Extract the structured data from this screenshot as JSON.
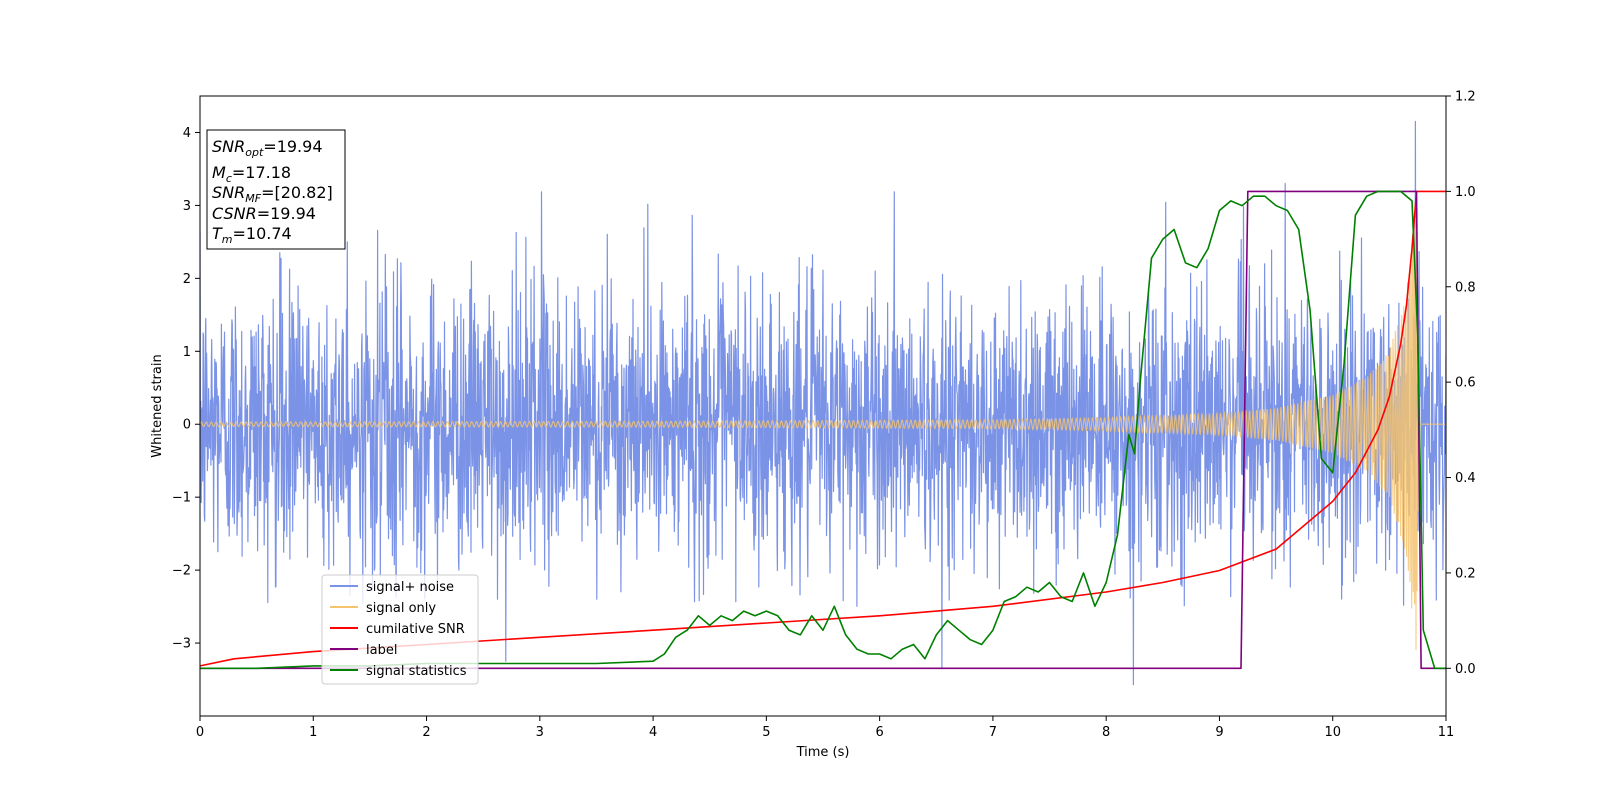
{
  "chart_data": {
    "type": "line",
    "xlabel": "Time (s)",
    "ylabel": "Whitened strain",
    "xlim": [
      0,
      11
    ],
    "ylim": [
      -4.0,
      4.5
    ],
    "y2lim": [
      -0.1,
      1.2
    ],
    "grid": false,
    "x_ticks": [
      "0",
      "1",
      "2",
      "3",
      "4",
      "5",
      "6",
      "7",
      "8",
      "9",
      "10",
      "11"
    ],
    "y_ticks": [
      "−3",
      "−2",
      "−1",
      "0",
      "1",
      "2",
      "3",
      "4"
    ],
    "y2_ticks": [
      "0.0",
      "0.2",
      "0.4",
      "0.6",
      "0.8",
      "1.0",
      "1.2"
    ],
    "legend_position": "lower-left",
    "info_box": {
      "snr_opt": {
        "base": "SNR",
        "sub": "opt",
        "value": "=19.94"
      },
      "mc": {
        "base": "M",
        "sub": "c",
        "value": "=17.18"
      },
      "snr_mf": {
        "base": "SNR",
        "sub": "MF",
        "value": "=[20.82]"
      },
      "csnr": {
        "base": "CSNR",
        "sub": "",
        "value": "=19.94"
      },
      "tm": {
        "base": "T",
        "sub": "m",
        "value": "=10.74"
      }
    },
    "series": [
      {
        "name": "signal+ noise",
        "axis": "left",
        "color": "#7b93e6",
        "kind": "noise",
        "noise_sigma": 1.0,
        "typical_range": [
          -2.5,
          3.2
        ],
        "extreme_points": [
          {
            "x": 9.58,
            "y": 3.3
          },
          {
            "x": 10.73,
            "y": 4.15
          },
          {
            "x": 8.24,
            "y": -3.57
          },
          {
            "x": 6.55,
            "y": -3.35
          },
          {
            "x": 1.3,
            "y": 2.5
          },
          {
            "x": 2.7,
            "y": -3.25
          }
        ]
      },
      {
        "name": "signal only",
        "axis": "left",
        "color": "#f5c36e",
        "kind": "chirp",
        "envelope": [
          [
            0,
            0.03
          ],
          [
            4,
            0.04
          ],
          [
            7,
            0.06
          ],
          [
            8,
            0.09
          ],
          [
            9,
            0.15
          ],
          [
            9.5,
            0.22
          ],
          [
            10,
            0.4
          ],
          [
            10.3,
            0.65
          ],
          [
            10.5,
            1.0
          ],
          [
            10.65,
            1.8
          ],
          [
            10.74,
            3.2
          ],
          [
            10.76,
            0
          ]
        ]
      },
      {
        "name": "cumilative SNR",
        "axis": "right",
        "color": "#ff0000",
        "x": [
          0,
          0.3,
          1,
          2,
          3,
          4,
          5,
          6,
          7,
          8,
          8.5,
          9,
          9.5,
          10,
          10.2,
          10.4,
          10.5,
          10.6,
          10.65,
          10.7,
          10.74,
          11
        ],
        "y": [
          0.005,
          0.02,
          0.035,
          0.05,
          0.065,
          0.08,
          0.095,
          0.11,
          0.13,
          0.16,
          0.18,
          0.205,
          0.25,
          0.35,
          0.41,
          0.5,
          0.57,
          0.68,
          0.76,
          0.88,
          1.0,
          1.0
        ]
      },
      {
        "name": "label",
        "axis": "right",
        "color": "#800080",
        "x": [
          0,
          9.19,
          9.25,
          10.74,
          10.78,
          11
        ],
        "y": [
          0.0,
          0.0,
          1.0,
          1.0,
          0.0,
          0.0
        ]
      },
      {
        "name": "signal statistics",
        "axis": "right",
        "color": "#008000",
        "x": [
          0,
          0.5,
          1,
          1.5,
          2,
          2.5,
          3,
          3.5,
          4,
          4.1,
          4.2,
          4.3,
          4.4,
          4.5,
          4.6,
          4.7,
          4.8,
          4.9,
          5.0,
          5.1,
          5.2,
          5.3,
          5.4,
          5.5,
          5.6,
          5.7,
          5.8,
          5.9,
          6.0,
          6.1,
          6.2,
          6.3,
          6.4,
          6.5,
          6.6,
          6.7,
          6.8,
          6.9,
          7.0,
          7.1,
          7.2,
          7.3,
          7.4,
          7.5,
          7.6,
          7.7,
          7.8,
          7.9,
          8.0,
          8.1,
          8.2,
          8.25,
          8.3,
          8.4,
          8.5,
          8.6,
          8.7,
          8.8,
          8.9,
          9.0,
          9.1,
          9.2,
          9.3,
          9.4,
          9.5,
          9.6,
          9.7,
          9.8,
          9.9,
          10.0,
          10.1,
          10.2,
          10.3,
          10.4,
          10.5,
          10.6,
          10.7,
          10.75,
          10.8,
          10.9,
          11.0
        ],
        "y": [
          0.0,
          0.0,
          0.005,
          0.005,
          0.01,
          0.01,
          0.01,
          0.01,
          0.015,
          0.03,
          0.065,
          0.08,
          0.11,
          0.09,
          0.11,
          0.1,
          0.12,
          0.11,
          0.12,
          0.11,
          0.08,
          0.07,
          0.11,
          0.08,
          0.13,
          0.07,
          0.04,
          0.03,
          0.03,
          0.02,
          0.04,
          0.05,
          0.02,
          0.07,
          0.1,
          0.08,
          0.06,
          0.05,
          0.08,
          0.14,
          0.15,
          0.17,
          0.16,
          0.18,
          0.15,
          0.14,
          0.2,
          0.13,
          0.18,
          0.28,
          0.49,
          0.45,
          0.6,
          0.86,
          0.9,
          0.92,
          0.85,
          0.84,
          0.88,
          0.96,
          0.98,
          0.97,
          0.99,
          0.99,
          0.97,
          0.96,
          0.92,
          0.75,
          0.44,
          0.41,
          0.64,
          0.95,
          0.99,
          1.0,
          1.0,
          1.0,
          0.98,
          0.7,
          0.08,
          0.0,
          0.0
        ]
      }
    ]
  }
}
